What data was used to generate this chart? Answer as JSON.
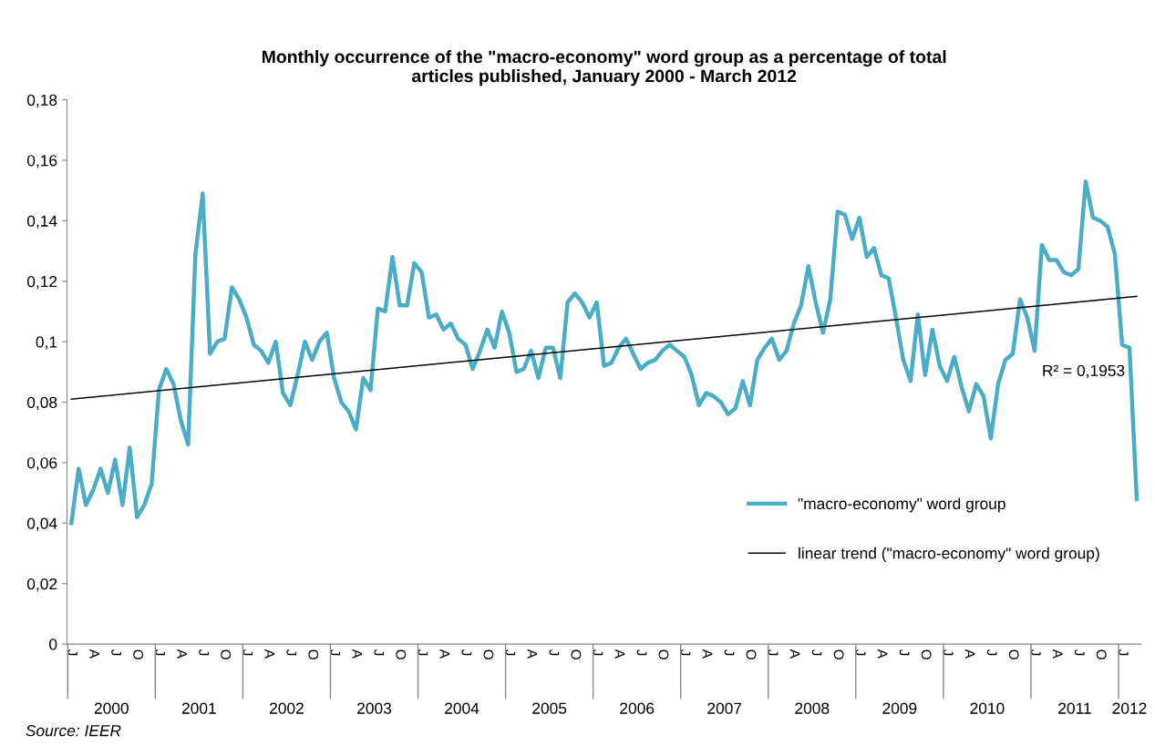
{
  "chart_data": {
    "type": "line",
    "title": "Monthly occurrence of the \"macro-economy\" word group as a percentage of total\narticles published, January 2000 - March 2012",
    "categories": [
      "J",
      null,
      null,
      "A",
      null,
      null,
      "J",
      null,
      null,
      "O",
      null,
      null,
      "J",
      null,
      null,
      "A",
      null,
      null,
      "J",
      null,
      null,
      "O",
      null,
      null,
      "J",
      null,
      null,
      "A",
      null,
      null,
      "J",
      null,
      null,
      "O",
      null,
      null,
      "J",
      null,
      null,
      "A",
      null,
      null,
      "J",
      null,
      null,
      "O",
      null,
      null,
      "J",
      null,
      null,
      "A",
      null,
      null,
      "J",
      null,
      null,
      "O",
      null,
      null,
      "J",
      null,
      null,
      "A",
      null,
      null,
      "J",
      null,
      null,
      "O",
      null,
      null,
      "J",
      null,
      null,
      "A",
      null,
      null,
      "J",
      null,
      null,
      "O",
      null,
      null,
      "J",
      null,
      null,
      "A",
      null,
      null,
      "J",
      null,
      null,
      "O",
      null,
      null,
      "J",
      null,
      null,
      "A",
      null,
      null,
      "J",
      null,
      null,
      "O",
      null,
      null,
      "J",
      null,
      null,
      "A",
      null,
      null,
      "J",
      null,
      null,
      "O",
      null,
      null,
      "J",
      null,
      null,
      "A",
      null,
      null,
      "J",
      null,
      null,
      "O",
      null,
      null,
      "J",
      null,
      null,
      "A",
      null,
      null,
      "J",
      null,
      null,
      "O",
      null,
      null,
      "J",
      null,
      null
    ],
    "series": [
      {
        "name": "\"macro-economy\" word group",
        "color": "#4bacc6",
        "values": [
          0.04,
          0.058,
          0.046,
          0.051,
          0.058,
          0.05,
          0.061,
          0.046,
          0.065,
          0.042,
          0.046,
          0.053,
          0.084,
          0.091,
          0.086,
          0.074,
          0.066,
          0.129,
          0.149,
          0.096,
          0.1,
          0.101,
          0.118,
          0.114,
          0.108,
          0.099,
          0.097,
          0.093,
          0.1,
          0.083,
          0.079,
          0.089,
          0.1,
          0.094,
          0.1,
          0.103,
          0.088,
          0.08,
          0.077,
          0.071,
          0.088,
          0.084,
          0.111,
          0.11,
          0.128,
          0.112,
          0.112,
          0.126,
          0.123,
          0.108,
          0.109,
          0.104,
          0.106,
          0.101,
          0.099,
          0.091,
          0.097,
          0.104,
          0.098,
          0.11,
          0.103,
          0.09,
          0.091,
          0.097,
          0.088,
          0.098,
          0.098,
          0.088,
          0.113,
          0.116,
          0.113,
          0.108,
          0.113,
          0.092,
          0.093,
          0.098,
          0.101,
          0.096,
          0.091,
          0.093,
          0.094,
          0.097,
          0.099,
          0.097,
          0.095,
          0.089,
          0.079,
          0.083,
          0.082,
          0.08,
          0.076,
          0.078,
          0.087,
          0.079,
          0.094,
          0.098,
          0.101,
          0.094,
          0.097,
          0.106,
          0.112,
          0.125,
          0.113,
          0.103,
          0.114,
          0.143,
          0.142,
          0.134,
          0.141,
          0.128,
          0.131,
          0.122,
          0.121,
          0.108,
          0.094,
          0.087,
          0.109,
          0.089,
          0.104,
          0.092,
          0.087,
          0.095,
          0.085,
          0.077,
          0.086,
          0.082,
          0.068,
          0.086,
          0.094,
          0.096,
          0.114,
          0.108,
          0.097,
          0.132,
          0.127,
          0.127,
          0.123,
          0.122,
          0.124,
          0.153,
          0.141,
          0.14,
          0.138,
          0.129,
          0.099,
          0.098,
          0.048
        ]
      },
      {
        "name": "linear trend (\"macro-economy\" word group)",
        "color": "#000000",
        "values": [
          0.081,
          null,
          null,
          null,
          null,
          null,
          null,
          null,
          null,
          null,
          null,
          null,
          null,
          null,
          null,
          null,
          null,
          null,
          null,
          null,
          null,
          null,
          null,
          null,
          null,
          null,
          null,
          null,
          null,
          null,
          null,
          null,
          null,
          null,
          null,
          null,
          null,
          null,
          null,
          null,
          null,
          null,
          null,
          null,
          null,
          null,
          null,
          null,
          null,
          null,
          null,
          null,
          null,
          null,
          null,
          null,
          null,
          null,
          null,
          null,
          null,
          null,
          null,
          null,
          null,
          null,
          null,
          null,
          null,
          null,
          null,
          null,
          null,
          null,
          null,
          null,
          null,
          null,
          null,
          null,
          null,
          null,
          null,
          null,
          null,
          null,
          null,
          null,
          null,
          null,
          null,
          null,
          null,
          null,
          null,
          null,
          null,
          null,
          null,
          null,
          null,
          null,
          null,
          null,
          null,
          null,
          null,
          null,
          null,
          null,
          null,
          null,
          null,
          null,
          null,
          null,
          null,
          null,
          null,
          null,
          null,
          null,
          null,
          null,
          null,
          null,
          null,
          null,
          null,
          null,
          null,
          null,
          null,
          null,
          null,
          null,
          null,
          null,
          null,
          null,
          null,
          null,
          null,
          null,
          null,
          null,
          0.115
        ]
      }
    ],
    "ylim": [
      0,
      0.18
    ],
    "yticks": [
      0,
      {
        "value": 0.02,
        "label": "0,02"
      },
      {
        "value": 0.04,
        "label": "0,04"
      },
      {
        "value": 0.06,
        "label": "0,06"
      },
      {
        "value": 0.08,
        "label": "0,08"
      },
      {
        "value": 0.1,
        "label": "0,1"
      },
      {
        "value": 0.12,
        "label": "0,12"
      },
      {
        "value": 0.14,
        "label": "0,14"
      },
      {
        "value": 0.16,
        "label": "0,16"
      },
      {
        "value": 0.18,
        "label": "0,18"
      }
    ],
    "annotations": [
      "2000",
      "2001",
      "2002",
      "2003",
      "2004",
      "2005",
      "2006",
      "2007",
      "2008",
      "2009",
      "2010",
      "2011",
      "2012",
      "R² = 0,1953",
      "Source: IEER"
    ],
    "legend": "right",
    "grid": false,
    "marker": "none",
    "line_style": "solid"
  }
}
